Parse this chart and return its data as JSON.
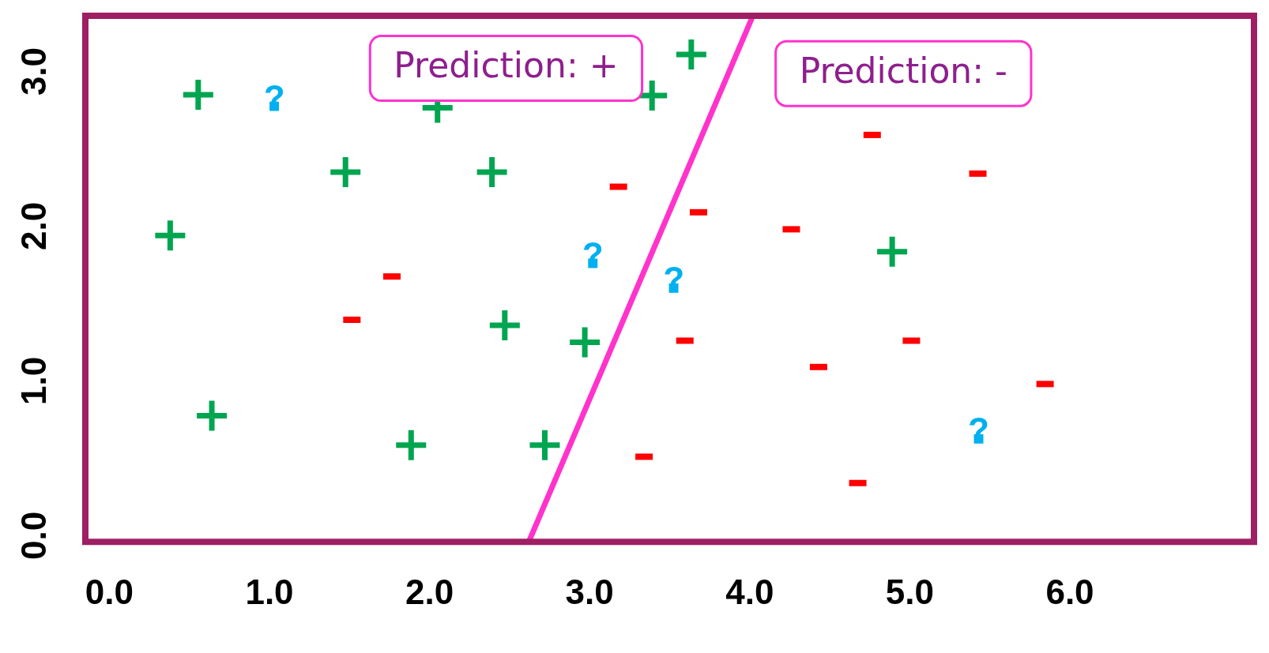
{
  "chart_data": {
    "type": "scatter",
    "xlim": [
      -0.15,
      7.15
    ],
    "ylim": [
      -0.04,
      3.36
    ],
    "xticks": [
      {
        "value": 0,
        "label": "0.0"
      },
      {
        "value": 1,
        "label": "1.0"
      },
      {
        "value": 2,
        "label": "2.0"
      },
      {
        "value": 3,
        "label": "3.0"
      },
      {
        "value": 4,
        "label": "4.0"
      },
      {
        "value": 5,
        "label": "5.0"
      },
      {
        "value": 6,
        "label": "6.0"
      }
    ],
    "yticks": [
      {
        "value": 0,
        "label": "0.0"
      },
      {
        "value": 1,
        "label": "1.0"
      },
      {
        "value": 2,
        "label": "2.0"
      },
      {
        "value": 3,
        "label": "3.0"
      }
    ],
    "grid": false,
    "legend": false,
    "series": [
      {
        "marker": "cross",
        "color": "#00a550",
        "x": [
          0.555,
          0.38,
          0.64,
          1.475,
          1.885,
          2.05,
          2.39,
          2.47,
          2.72,
          2.97,
          3.39,
          3.635,
          4.89
        ],
        "values": [
          2.85,
          1.94,
          0.775,
          2.35,
          0.585,
          2.765,
          2.35,
          1.36,
          0.585,
          1.25,
          2.845,
          3.11,
          1.835
        ]
      },
      {
        "color": "#ff0000",
        "x": [
          3.18,
          1.765,
          1.515,
          3.34,
          3.68,
          3.595,
          4.26,
          4.43,
          4.765,
          5.01,
          5.425,
          4.675,
          5.845
        ],
        "values": [
          2.255,
          1.675,
          1.395,
          0.51,
          2.09,
          1.26,
          1.98,
          1.09,
          2.59,
          1.26,
          2.34,
          0.34,
          0.98
        ]
      },
      {
        "marker": "square",
        "color": "#00b0f0",
        "x": [
          1.03,
          3.02,
          3.525,
          5.43
        ],
        "values": [
          2.775,
          1.76,
          1.6,
          0.625
        ],
        "value_labels": [
          "?",
          "?",
          "?",
          "?"
        ]
      },
      {
        "type": "line",
        "marker": "none",
        "line_style": "solid",
        "color": "#ff33cc",
        "x": [
          2.62,
          4.02
        ],
        "values": [
          -0.04,
          3.36
        ]
      }
    ],
    "annotations": [
      "Prediction: +",
      "Prediction: -"
    ]
  }
}
